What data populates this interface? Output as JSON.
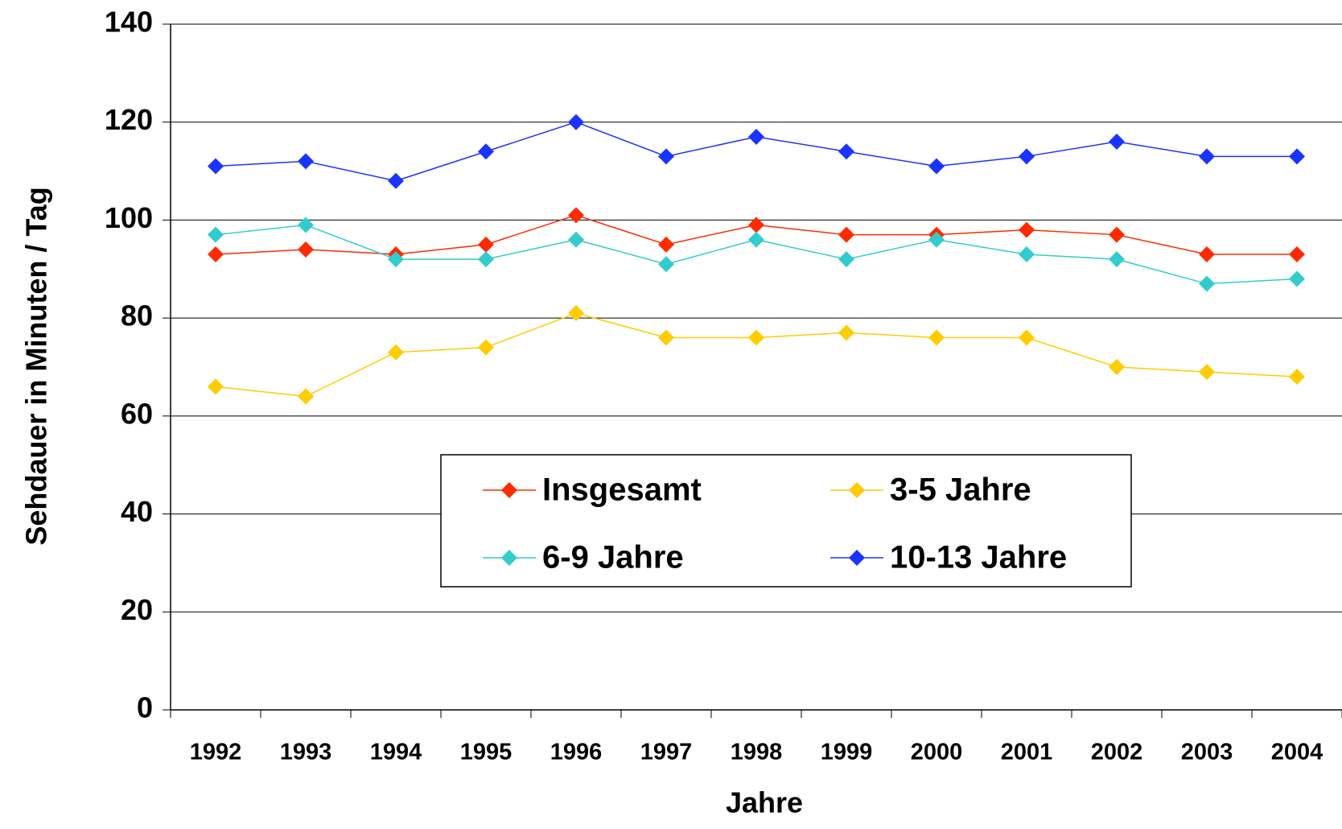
{
  "chart_data": {
    "type": "line",
    "x_label": "Jahre",
    "y_label": "Sehdauer in Minuten / Tag",
    "categories": [
      "1992",
      "1993",
      "1994",
      "1995",
      "1996",
      "1997",
      "1998",
      "1999",
      "2000",
      "2001",
      "2002",
      "2003",
      "2004"
    ],
    "series": [
      {
        "name": "Insgesamt",
        "color": "#ff2a00",
        "values": [
          93,
          94,
          93,
          95,
          101,
          95,
          99,
          97,
          97,
          98,
          97,
          93,
          93
        ]
      },
      {
        "name": "3-5 Jahre",
        "color": "#ffcc00",
        "values": [
          66,
          64,
          73,
          74,
          81,
          76,
          76,
          77,
          76,
          76,
          70,
          69,
          68
        ]
      },
      {
        "name": "6-9 Jahre",
        "color": "#33cccc",
        "values": [
          97,
          99,
          92,
          92,
          96,
          91,
          96,
          92,
          96,
          93,
          92,
          87,
          88
        ]
      },
      {
        "name": "10-13 Jahre",
        "color": "#1a33ff",
        "values": [
          111,
          112,
          108,
          114,
          120,
          113,
          117,
          114,
          111,
          113,
          116,
          113,
          113
        ]
      }
    ],
    "ylim": [
      0,
      140
    ],
    "yticks": [
      0,
      20,
      40,
      60,
      80,
      100,
      120,
      140
    ],
    "grid": true,
    "legend": "center"
  }
}
